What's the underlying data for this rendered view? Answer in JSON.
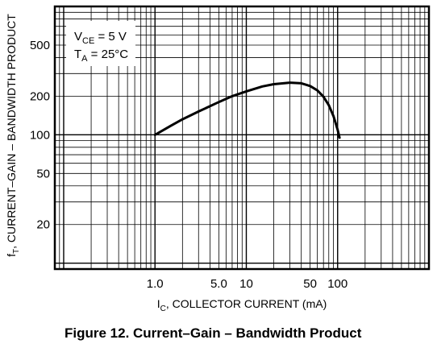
{
  "chart_data": {
    "type": "line",
    "x_scale": "log",
    "y_scale": "log",
    "xlim": [
      0.08,
      1000
    ],
    "ylim": [
      9,
      1000
    ],
    "grid": true,
    "x_ticks": [
      {
        "value": 1.0,
        "label": "1.0"
      },
      {
        "value": 5.0,
        "label": "5.0"
      },
      {
        "value": 10,
        "label": "10"
      },
      {
        "value": 50,
        "label": "50"
      },
      {
        "value": 100,
        "label": "100"
      }
    ],
    "y_ticks": [
      {
        "value": 20,
        "label": "20"
      },
      {
        "value": 50,
        "label": "50"
      },
      {
        "value": 100,
        "label": "100"
      },
      {
        "value": 200,
        "label": "200"
      },
      {
        "value": 500,
        "label": "500"
      }
    ],
    "xlabel": {
      "main": "I",
      "sub": "C",
      "rest": ", COLLECTOR CURRENT (mA)"
    },
    "ylabel": {
      "main": "f",
      "sub": "T",
      "rest": ", CURRENT–GAIN – BANDWIDTH PRODUCT"
    },
    "annotations": [
      {
        "main": "V",
        "sub": "CE",
        "rest": " = 5 V"
      },
      {
        "main": "T",
        "sub": "A",
        "rest": " = 25°C"
      }
    ],
    "series": [
      {
        "x": [
          1.0,
          1.5,
          2,
          3,
          5,
          7,
          10,
          15,
          20,
          30,
          40,
          50,
          60,
          70,
          80,
          90,
          100,
          105
        ],
        "y": [
          100,
          118,
          132,
          152,
          180,
          200,
          218,
          238,
          248,
          255,
          252,
          240,
          222,
          198,
          170,
          140,
          110,
          95
        ]
      }
    ]
  },
  "caption": "Figure 12. Current–Gain – Bandwidth Product"
}
